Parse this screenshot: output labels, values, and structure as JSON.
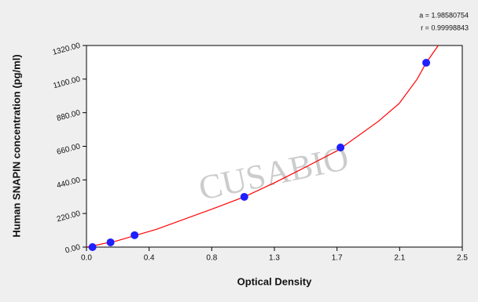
{
  "chart_data": {
    "type": "scatter",
    "xlabel": "Optical Density",
    "ylabel": "Human SNAPIN concentration (pg/ml)",
    "annotations": [
      "a = 1.98580754",
      "r = 0.99998843"
    ],
    "watermark": "CUSABIO",
    "x": [
      0.04,
      0.16,
      0.32,
      1.05,
      1.69,
      2.26
    ],
    "values": [
      0,
      31,
      78,
      329,
      652,
      1207
    ],
    "color": "#1f1fff",
    "fit": {
      "x": [
        0.0,
        0.2,
        0.47,
        0.83,
        1.05,
        1.25,
        1.45,
        1.67,
        1.94,
        2.08,
        2.2,
        2.26,
        2.34
      ],
      "values": [
        0,
        40,
        118,
        247,
        329,
        421,
        520,
        632,
        822,
        940,
        1100,
        1207,
        1320
      ],
      "color": "#ff0000"
    },
    "xlim": [
      0,
      2.5
    ],
    "xticks": [
      {
        "value": 0,
        "label": "0.0"
      },
      {
        "value": 0.4167,
        "label": "0.4"
      },
      {
        "value": 0.8333,
        "label": "0.8"
      },
      {
        "value": 1.25,
        "label": "1.3"
      },
      {
        "value": 1.6667,
        "label": "1.7"
      },
      {
        "value": 2.0833,
        "label": "2.1"
      },
      2.5
    ],
    "ylim": [
      0,
      1320
    ],
    "yticks": [
      {
        "value": 0,
        "label": "0.00"
      },
      {
        "value": 220,
        "label": "220.00"
      },
      {
        "value": 440,
        "label": "440.00"
      },
      {
        "value": 660,
        "label": "660.00"
      },
      {
        "value": 880,
        "label": "880.00"
      },
      {
        "value": 1100,
        "label": "1100.00"
      },
      {
        "value": 1320,
        "label": "1320.00"
      }
    ]
  }
}
